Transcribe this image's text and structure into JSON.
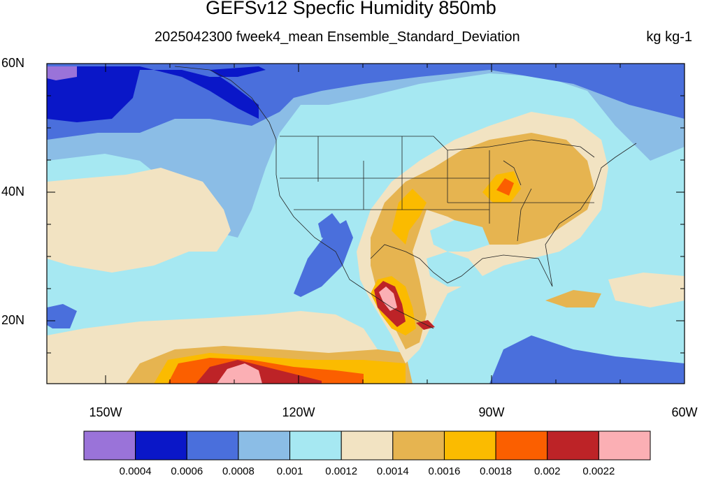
{
  "title": "GEFSv12 Specfic Humidity 850mb",
  "subtitle": "2025042300 fweek4_mean Ensemble_Standard_Deviation",
  "units": "kg kg-1",
  "lat_labels": [
    "60N",
    "40N",
    "20N"
  ],
  "lon_labels": [
    "150W",
    "120W",
    "90W",
    "60W"
  ],
  "colorbar": {
    "labels": [
      "0.0004",
      "0.0006",
      "0.0008",
      "0.001",
      "0.0012",
      "0.0014",
      "0.0016",
      "0.0018",
      "0.002",
      "0.0022"
    ],
    "colors": [
      "#9a73d9",
      "#0a17c8",
      "#4a6fdc",
      "#8bbde6",
      "#a6e8f2",
      "#f2e3c2",
      "#e6b450",
      "#fbbb00",
      "#fb5f00",
      "#bd2327",
      "#fbafb4"
    ]
  }
}
